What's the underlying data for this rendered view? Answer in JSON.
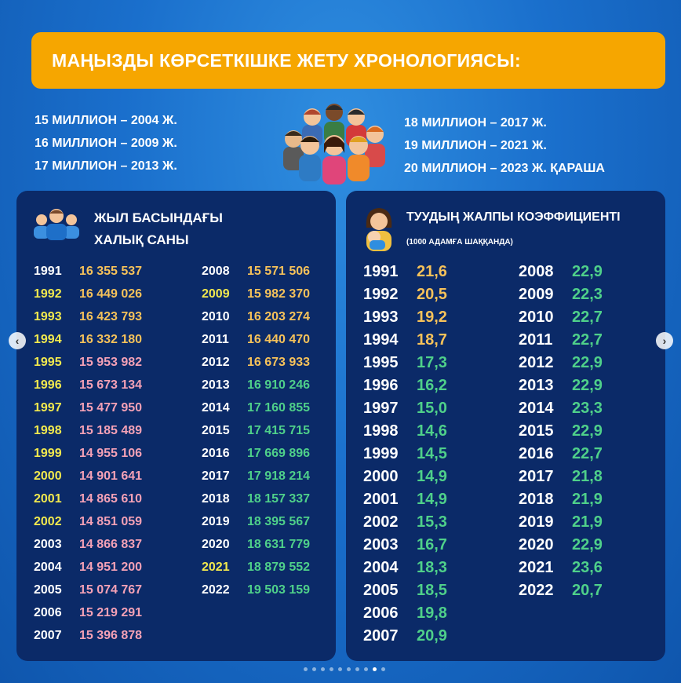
{
  "banner": {
    "title": "МАҢЫЗДЫ КӨРСЕТКІШКЕ ЖЕТУ ХРОНОЛОГИЯСЫ:"
  },
  "milestones_left": [
    "15 МИЛЛИОН – 2004 Ж.",
    "16 МИЛЛИОН – 2009 Ж.",
    "17 МИЛЛИОН – 2013 Ж."
  ],
  "milestones_right": [
    "18 МИЛЛИОН – 2017 Ж.",
    "19 МИЛЛИОН – 2021 Ж.",
    "20 МИЛЛИОН – 2023 Ж. ҚАРАША"
  ],
  "colors": {
    "white": "#ffffff",
    "yellow": "#f2e94e",
    "orange": "#f6c25a",
    "pink": "#f4a1b6",
    "green": "#4fd08a",
    "banner": "#f6a600",
    "panel": "#0b2a68"
  },
  "population_panel": {
    "title_line1": "ЖЫЛ БАСЫНДАҒЫ",
    "title_line2": "ХАЛЫҚ САНЫ",
    "icon": "people-group-icon",
    "rows": [
      {
        "year": "1991",
        "value": "16 355 537",
        "year_color": "white",
        "value_color": "orange"
      },
      {
        "year": "1992",
        "value": "16 449 026",
        "year_color": "yellow",
        "value_color": "orange"
      },
      {
        "year": "1993",
        "value": "16 423 793",
        "year_color": "yellow",
        "value_color": "orange"
      },
      {
        "year": "1994",
        "value": "16 332 180",
        "year_color": "yellow",
        "value_color": "orange"
      },
      {
        "year": "1995",
        "value": "15 953 982",
        "year_color": "yellow",
        "value_color": "pink"
      },
      {
        "year": "1996",
        "value": "15 673 134",
        "year_color": "yellow",
        "value_color": "pink"
      },
      {
        "year": "1997",
        "value": "15 477 950",
        "year_color": "yellow",
        "value_color": "pink"
      },
      {
        "year": "1998",
        "value": "15 185 489",
        "year_color": "yellow",
        "value_color": "pink"
      },
      {
        "year": "1999",
        "value": "14 955 106",
        "year_color": "yellow",
        "value_color": "pink"
      },
      {
        "year": "2000",
        "value": "14 901 641",
        "year_color": "yellow",
        "value_color": "pink"
      },
      {
        "year": "2001",
        "value": "14 865 610",
        "year_color": "yellow",
        "value_color": "pink"
      },
      {
        "year": "2002",
        "value": "14 851 059",
        "year_color": "yellow",
        "value_color": "pink"
      },
      {
        "year": "2003",
        "value": "14 866 837",
        "year_color": "white",
        "value_color": "pink"
      },
      {
        "year": "2004",
        "value": "14 951 200",
        "year_color": "white",
        "value_color": "pink"
      },
      {
        "year": "2005",
        "value": "15 074 767",
        "year_color": "white",
        "value_color": "pink"
      },
      {
        "year": "2006",
        "value": "15 219 291",
        "year_color": "white",
        "value_color": "pink"
      },
      {
        "year": "2007",
        "value": "15 396 878",
        "year_color": "white",
        "value_color": "pink"
      },
      {
        "year": "2008",
        "value": "15 571 506",
        "year_color": "white",
        "value_color": "orange"
      },
      {
        "year": "2009",
        "value": "15 982 370",
        "year_color": "yellow",
        "value_color": "orange"
      },
      {
        "year": "2010",
        "value": "16 203 274",
        "year_color": "white",
        "value_color": "orange"
      },
      {
        "year": "2011",
        "value": "16 440 470",
        "year_color": "white",
        "value_color": "orange"
      },
      {
        "year": "2012",
        "value": "16 673 933",
        "year_color": "white",
        "value_color": "orange"
      },
      {
        "year": "2013",
        "value": "16 910 246",
        "year_color": "white",
        "value_color": "green"
      },
      {
        "year": "2014",
        "value": "17 160 855",
        "year_color": "white",
        "value_color": "green"
      },
      {
        "year": "2015",
        "value": "17 415 715",
        "year_color": "white",
        "value_color": "green"
      },
      {
        "year": "2016",
        "value": "17 669 896",
        "year_color": "white",
        "value_color": "green"
      },
      {
        "year": "2017",
        "value": "17 918 214",
        "year_color": "white",
        "value_color": "green"
      },
      {
        "year": "2018",
        "value": "18 157 337",
        "year_color": "white",
        "value_color": "green"
      },
      {
        "year": "2019",
        "value": "18 395 567",
        "year_color": "white",
        "value_color": "green"
      },
      {
        "year": "2020",
        "value": "18 631 779",
        "year_color": "white",
        "value_color": "green"
      },
      {
        "year": "2021",
        "value": "18 879 552",
        "year_color": "yellow",
        "value_color": "green"
      },
      {
        "year": "2022",
        "value": "19 503 159",
        "year_color": "white",
        "value_color": "green"
      }
    ]
  },
  "birth_rate_panel": {
    "title": "ТУУДЫҢ ЖАЛПЫ КОЭФФИЦИЕНТІ",
    "subtitle": "(1000 АДАМҒА ШАҚҚАНДА)",
    "icon": "mother-baby-icon",
    "rows": [
      {
        "year": "1991",
        "value": "21,6",
        "value_color": "orange"
      },
      {
        "year": "1992",
        "value": "20,5",
        "value_color": "orange"
      },
      {
        "year": "1993",
        "value": "19,2",
        "value_color": "orange"
      },
      {
        "year": "1994",
        "value": "18,7",
        "value_color": "orange"
      },
      {
        "year": "1995",
        "value": "17,3",
        "value_color": "green"
      },
      {
        "year": "1996",
        "value": "16,2",
        "value_color": "green"
      },
      {
        "year": "1997",
        "value": "15,0",
        "value_color": "green"
      },
      {
        "year": "1998",
        "value": "14,6",
        "value_color": "green"
      },
      {
        "year": "1999",
        "value": "14,5",
        "value_color": "green"
      },
      {
        "year": "2000",
        "value": "14,9",
        "value_color": "green"
      },
      {
        "year": "2001",
        "value": "14,9",
        "value_color": "green"
      },
      {
        "year": "2002",
        "value": "15,3",
        "value_color": "green"
      },
      {
        "year": "2003",
        "value": "16,7",
        "value_color": "green"
      },
      {
        "year": "2004",
        "value": "18,3",
        "value_color": "green"
      },
      {
        "year": "2005",
        "value": "18,5",
        "value_color": "green"
      },
      {
        "year": "2006",
        "value": "19,8",
        "value_color": "green"
      },
      {
        "year": "2007",
        "value": "20,9",
        "value_color": "green"
      },
      {
        "year": "2008",
        "value": "22,9",
        "value_color": "green"
      },
      {
        "year": "2009",
        "value": "22,3",
        "value_color": "green"
      },
      {
        "year": "2010",
        "value": "22,7",
        "value_color": "green"
      },
      {
        "year": "2011",
        "value": "22,7",
        "value_color": "green"
      },
      {
        "year": "2012",
        "value": "22,9",
        "value_color": "green"
      },
      {
        "year": "2013",
        "value": "22,9",
        "value_color": "green"
      },
      {
        "year": "2014",
        "value": "23,3",
        "value_color": "green"
      },
      {
        "year": "2015",
        "value": "22,9",
        "value_color": "green"
      },
      {
        "year": "2016",
        "value": "22,7",
        "value_color": "green"
      },
      {
        "year": "2017",
        "value": "21,8",
        "value_color": "green"
      },
      {
        "year": "2018",
        "value": "21,9",
        "value_color": "green"
      },
      {
        "year": "2019",
        "value": "21,9",
        "value_color": "green"
      },
      {
        "year": "2020",
        "value": "22,9",
        "value_color": "green"
      },
      {
        "year": "2021",
        "value": "23,6",
        "value_color": "green"
      },
      {
        "year": "2022",
        "value": "20,7",
        "value_color": "green"
      }
    ]
  },
  "carousel": {
    "prev_icon": "chevron-left-icon",
    "next_icon": "chevron-right-icon",
    "slide_count": 10,
    "active_slide": 9,
    "prev_glyph": "‹",
    "next_glyph": "›"
  }
}
